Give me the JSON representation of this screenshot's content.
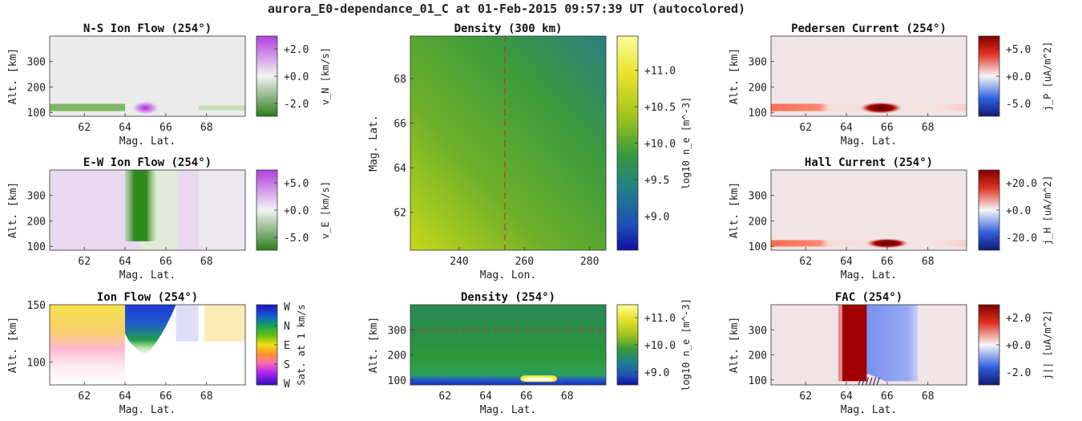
{
  "title": "aurora_E0-dependance_01_C at 01-Feb-2015 09:57:39 UT (autocolored)",
  "colors": {
    "green": "#3a8f2a",
    "purple": "#c05fe0",
    "red": "#8b0000",
    "blue": "#1a3fb0",
    "dash": "#d03020"
  },
  "chart_data": [
    {
      "id": "ns",
      "type": "heatmap",
      "title": "N-S Ion Flow (254°)",
      "xlabel": "Mag. Lat.",
      "ylabel": "Alt. [km]",
      "xlim": [
        60.3,
        69.9
      ],
      "ylim": [
        85,
        400
      ],
      "xticks": [
        62,
        64,
        66,
        68
      ],
      "yticks": [
        100,
        200,
        300
      ],
      "colorbar": {
        "ticks": [
          "+2.0",
          "+0.0",
          "-2.0"
        ],
        "label": "v_N [km/s]",
        "colormap": "green-purple"
      }
    },
    {
      "id": "ew",
      "type": "heatmap",
      "title": "E-W Ion Flow (254°)",
      "xlabel": "Mag. Lat.",
      "ylabel": "Alt. [km]",
      "xlim": [
        60.3,
        69.9
      ],
      "ylim": [
        85,
        400
      ],
      "xticks": [
        62,
        64,
        66,
        68
      ],
      "yticks": [
        100,
        200,
        300
      ],
      "colorbar": {
        "ticks": [
          "+5.0",
          "+0.0",
          "-5.0"
        ],
        "label": "v_E [km/s]",
        "colormap": "green-purple"
      }
    },
    {
      "id": "iflow",
      "type": "heatmap",
      "title": "Ion Flow (254°)",
      "xlabel": "Mag. Lat.",
      "ylabel": "Alt. [km]",
      "xlim": [
        60.3,
        69.9
      ],
      "ylim": [
        80,
        150
      ],
      "xticks": [
        62,
        64,
        66,
        68
      ],
      "yticks": [
        100,
        150
      ],
      "colorbar": {
        "ticks": [
          "W",
          "N",
          "E",
          "S",
          "W"
        ],
        "label": "Sat. at 1 km/s",
        "colormap": "hue"
      }
    },
    {
      "id": "dens300",
      "type": "heatmap",
      "title": "Density (300 km)",
      "xlabel": "Mag. Lon.",
      "ylabel": "Mag. Lat.",
      "xlim": [
        225,
        285
      ],
      "ylim": [
        60.3,
        69.9
      ],
      "xticks": [
        240,
        260,
        280
      ],
      "yticks": [
        62,
        64,
        66,
        68
      ],
      "dashed_x": 254,
      "colorbar": {
        "ticks": [
          "+11.0",
          "+10.5",
          "+10.0",
          "+9.5",
          "+9.0"
        ],
        "label": "log10 n_e [m^-3]",
        "colormap": "parula"
      }
    },
    {
      "id": "dens254",
      "type": "heatmap",
      "title": "Density (254°)",
      "xlabel": "Mag. Lat.",
      "ylabel": "Alt. [km]",
      "xlim": [
        60.3,
        69.9
      ],
      "ylim": [
        80,
        400
      ],
      "xticks": [
        62,
        64,
        66,
        68
      ],
      "yticks": [
        100,
        200,
        300
      ],
      "dashed_y": 300,
      "colorbar": {
        "ticks": [
          "+11.0",
          "+10.0",
          "+9.0"
        ],
        "label": "log10 n_e [m^-3]",
        "colormap": "parula"
      }
    },
    {
      "id": "ped",
      "type": "heatmap",
      "title": "Pedersen Current (254°)",
      "xlabel": "Mag. Lat.",
      "ylabel": "Alt. [km]",
      "xlim": [
        60.3,
        69.9
      ],
      "ylim": [
        85,
        400
      ],
      "xticks": [
        62,
        64,
        66,
        68
      ],
      "yticks": [
        100,
        200,
        300
      ],
      "colorbar": {
        "ticks": [
          "+5.0",
          "+0.0",
          "-5.0"
        ],
        "label": "j_P [uA/m^2]",
        "colormap": "red-blue"
      }
    },
    {
      "id": "hall",
      "type": "heatmap",
      "title": "Hall Current (254°)",
      "xlabel": "Mag. Lat.",
      "ylabel": "Alt. [km]",
      "xlim": [
        60.3,
        69.9
      ],
      "ylim": [
        85,
        400
      ],
      "xticks": [
        62,
        64,
        66,
        68
      ],
      "yticks": [
        100,
        200,
        300
      ],
      "colorbar": {
        "ticks": [
          "+20.0",
          "+0.0",
          "-20.0"
        ],
        "label": "j_H [uA/m^2]",
        "colormap": "red-blue"
      }
    },
    {
      "id": "fac",
      "type": "heatmap",
      "title": "FAC (254°)",
      "xlabel": "Mag. Lat.",
      "ylabel": "Alt. [km]",
      "xlim": [
        60.3,
        69.9
      ],
      "ylim": [
        80,
        400
      ],
      "xticks": [
        62,
        64,
        66,
        68
      ],
      "yticks": [
        100,
        200,
        300
      ],
      "colorbar": {
        "ticks": [
          "+2.0",
          "+0.0",
          "-2.0"
        ],
        "label": "j|| [uA/m^2]",
        "colormap": "red-blue"
      }
    }
  ]
}
